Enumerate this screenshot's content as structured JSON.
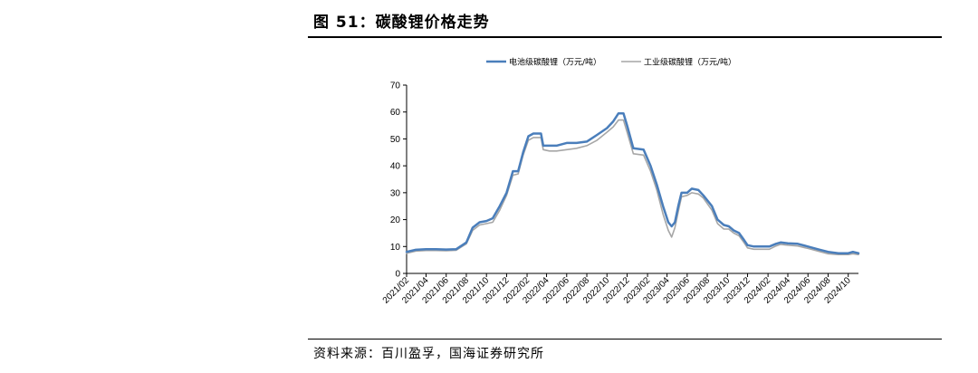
{
  "figure": {
    "title": "图 51：碳酸锂价格走势",
    "source": "资料来源：百川盈孚，国海证券研究所"
  },
  "chart_data": {
    "type": "line",
    "xlabel": "",
    "ylabel": "",
    "ylim": [
      0,
      70
    ],
    "yticks": [
      0,
      10,
      20,
      30,
      40,
      50,
      60,
      70
    ],
    "xlim": [
      "2021/02",
      "2024/11"
    ],
    "xticks": [
      "2021/02",
      "2021/04",
      "2021/06",
      "2021/08",
      "2021/10",
      "2021/12",
      "2022/02",
      "2022/04",
      "2022/06",
      "2022/08",
      "2022/10",
      "2022/12",
      "2023/02",
      "2023/04",
      "2023/06",
      "2023/08",
      "2023/10",
      "2023/12",
      "2024/02",
      "2024/04",
      "2024/06",
      "2024/08",
      "2024/10"
    ],
    "grid": false,
    "legend_position": "top",
    "series": [
      {
        "name": "电池级碳酸锂（万元/吨）",
        "color": "#4a7ebb",
        "points": [
          [
            "2021/02/01",
            8.0
          ],
          [
            "2021/03/01",
            8.8
          ],
          [
            "2021/04/01",
            9.0
          ],
          [
            "2021/05/01",
            9.0
          ],
          [
            "2021/06/01",
            8.9
          ],
          [
            "2021/07/01",
            9.0
          ],
          [
            "2021/08/01",
            11.5
          ],
          [
            "2021/08/20",
            17.0
          ],
          [
            "2021/09/10",
            19.0
          ],
          [
            "2021/10/01",
            19.5
          ],
          [
            "2021/10/20",
            20.5
          ],
          [
            "2021/11/10",
            25.0
          ],
          [
            "2021/12/01",
            30.0
          ],
          [
            "2021/12/20",
            38.0
          ],
          [
            "2022/01/05",
            38.0
          ],
          [
            "2022/01/20",
            45.0
          ],
          [
            "2022/02/05",
            51.0
          ],
          [
            "2022/02/20",
            52.0
          ],
          [
            "2022/03/15",
            52.0
          ],
          [
            "2022/03/22",
            47.5
          ],
          [
            "2022/05/01",
            47.5
          ],
          [
            "2022/06/01",
            48.5
          ],
          [
            "2022/07/01",
            48.5
          ],
          [
            "2022/08/01",
            49.0
          ],
          [
            "2022/09/01",
            51.5
          ],
          [
            "2022/10/01",
            54.0
          ],
          [
            "2022/10/20",
            56.5
          ],
          [
            "2022/11/05",
            59.5
          ],
          [
            "2022/11/20",
            59.5
          ],
          [
            "2022/12/01",
            55.0
          ],
          [
            "2022/12/20",
            46.5
          ],
          [
            "2023/01/20",
            46.0
          ],
          [
            "2023/02/10",
            40.0
          ],
          [
            "2023/03/01",
            33.0
          ],
          [
            "2023/03/20",
            25.0
          ],
          [
            "2023/04/05",
            19.0
          ],
          [
            "2023/04/15",
            17.5
          ],
          [
            "2023/04/25",
            19.0
          ],
          [
            "2023/05/05",
            25.0
          ],
          [
            "2023/05/15",
            30.0
          ],
          [
            "2023/06/01",
            30.0
          ],
          [
            "2023/06/15",
            31.5
          ],
          [
            "2023/07/05",
            31.0
          ],
          [
            "2023/07/20",
            29.0
          ],
          [
            "2023/08/15",
            25.0
          ],
          [
            "2023/09/01",
            20.0
          ],
          [
            "2023/09/20",
            18.0
          ],
          [
            "2023/10/05",
            17.5
          ],
          [
            "2023/10/20",
            16.0
          ],
          [
            "2023/11/05",
            15.0
          ],
          [
            "2023/11/20",
            12.5
          ],
          [
            "2023/12/01",
            10.5
          ],
          [
            "2023/12/20",
            10.0
          ],
          [
            "2024/01/15",
            10.0
          ],
          [
            "2024/02/05",
            10.0
          ],
          [
            "2024/02/25",
            11.0
          ],
          [
            "2024/03/10",
            11.5
          ],
          [
            "2024/04/01",
            11.2
          ],
          [
            "2024/05/01",
            11.0
          ],
          [
            "2024/06/01",
            10.0
          ],
          [
            "2024/07/01",
            9.0
          ],
          [
            "2024/08/01",
            8.0
          ],
          [
            "2024/09/01",
            7.5
          ],
          [
            "2024/10/01",
            7.5
          ],
          [
            "2024/10/15",
            8.0
          ],
          [
            "2024/11/01",
            7.5
          ]
        ]
      },
      {
        "name": "工业级碳酸锂（万元/吨）",
        "color": "#a6a6a6",
        "points": [
          [
            "2021/02/01",
            7.5
          ],
          [
            "2021/03/01",
            8.3
          ],
          [
            "2021/04/01",
            8.5
          ],
          [
            "2021/05/01",
            8.5
          ],
          [
            "2021/06/01",
            8.4
          ],
          [
            "2021/07/01",
            8.6
          ],
          [
            "2021/08/01",
            11.0
          ],
          [
            "2021/08/20",
            16.0
          ],
          [
            "2021/09/10",
            18.0
          ],
          [
            "2021/10/01",
            18.5
          ],
          [
            "2021/10/20",
            19.0
          ],
          [
            "2021/11/10",
            23.5
          ],
          [
            "2021/12/01",
            29.0
          ],
          [
            "2021/12/20",
            36.5
          ],
          [
            "2022/01/05",
            37.0
          ],
          [
            "2022/01/20",
            44.0
          ],
          [
            "2022/02/05",
            49.5
          ],
          [
            "2022/02/20",
            50.5
          ],
          [
            "2022/03/15",
            50.5
          ],
          [
            "2022/03/22",
            46.0
          ],
          [
            "2022/04/10",
            45.5
          ],
          [
            "2022/05/01",
            45.5
          ],
          [
            "2022/06/01",
            46.0
          ],
          [
            "2022/07/01",
            46.5
          ],
          [
            "2022/08/01",
            47.5
          ],
          [
            "2022/09/01",
            49.5
          ],
          [
            "2022/10/01",
            52.5
          ],
          [
            "2022/10/20",
            54.5
          ],
          [
            "2022/11/05",
            57.0
          ],
          [
            "2022/11/20",
            57.0
          ],
          [
            "2022/12/01",
            52.5
          ],
          [
            "2022/12/20",
            44.5
          ],
          [
            "2023/01/20",
            44.0
          ],
          [
            "2023/02/10",
            38.0
          ],
          [
            "2023/03/01",
            31.0
          ],
          [
            "2023/03/20",
            22.0
          ],
          [
            "2023/04/05",
            16.0
          ],
          [
            "2023/04/15",
            13.5
          ],
          [
            "2023/04/25",
            17.0
          ],
          [
            "2023/05/05",
            23.0
          ],
          [
            "2023/05/15",
            28.5
          ],
          [
            "2023/06/01",
            29.0
          ],
          [
            "2023/06/15",
            30.0
          ],
          [
            "2023/07/05",
            29.5
          ],
          [
            "2023/07/20",
            28.0
          ],
          [
            "2023/08/15",
            23.5
          ],
          [
            "2023/09/01",
            18.5
          ],
          [
            "2023/09/20",
            16.5
          ],
          [
            "2023/10/05",
            16.5
          ],
          [
            "2023/10/20",
            15.0
          ],
          [
            "2023/11/05",
            14.0
          ],
          [
            "2023/11/20",
            11.5
          ],
          [
            "2023/12/01",
            9.5
          ],
          [
            "2023/12/20",
            9.0
          ],
          [
            "2024/01/15",
            9.0
          ],
          [
            "2024/02/05",
            9.0
          ],
          [
            "2024/02/25",
            10.2
          ],
          [
            "2024/03/10",
            10.8
          ],
          [
            "2024/04/01",
            10.5
          ],
          [
            "2024/05/01",
            10.2
          ],
          [
            "2024/06/01",
            9.3
          ],
          [
            "2024/07/01",
            8.3
          ],
          [
            "2024/08/01",
            7.3
          ],
          [
            "2024/09/01",
            7.0
          ],
          [
            "2024/10/01",
            7.0
          ],
          [
            "2024/10/15",
            7.3
          ],
          [
            "2024/11/01",
            7.0
          ]
        ]
      }
    ]
  }
}
